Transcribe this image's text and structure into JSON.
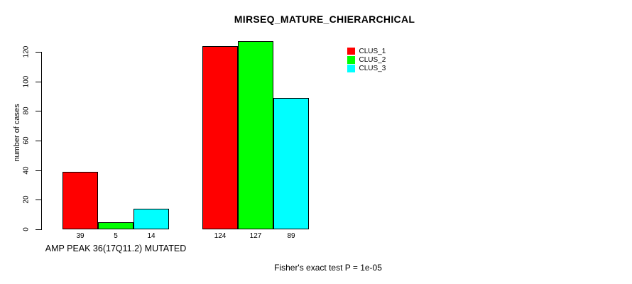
{
  "title": "MIRSEQ_MATURE_CHIERARCHICAL",
  "chart_data": {
    "type": "bar",
    "grouped": true,
    "title": "MIRSEQ_MATURE_CHIERARCHICAL",
    "xlabel": "",
    "ylabel": "number of cases",
    "ylim": [
      0,
      120
    ],
    "yticks": [
      0,
      20,
      40,
      60,
      80,
      100,
      120
    ],
    "grid": false,
    "legend_position": "top-right",
    "bar_value_labels": true,
    "categories": [
      "AMP PEAK 36(17Q11.2) MUTATED",
      ""
    ],
    "series": [
      {
        "name": "CLUS_1",
        "color": "#ff0000",
        "values": [
          39,
          124
        ]
      },
      {
        "name": "CLUS_2",
        "color": "#00ff00",
        "values": [
          5,
          127
        ]
      },
      {
        "name": "CLUS_3",
        "color": "#00ffff",
        "values": [
          14,
          89
        ]
      }
    ],
    "annotation": "Fisher's exact test P = 1e-05"
  },
  "colors": {
    "clus_1": "#ff0000",
    "clus_2": "#00ff00",
    "clus_3": "#00ffff",
    "axis": "#000000",
    "background": "#ffffff"
  }
}
